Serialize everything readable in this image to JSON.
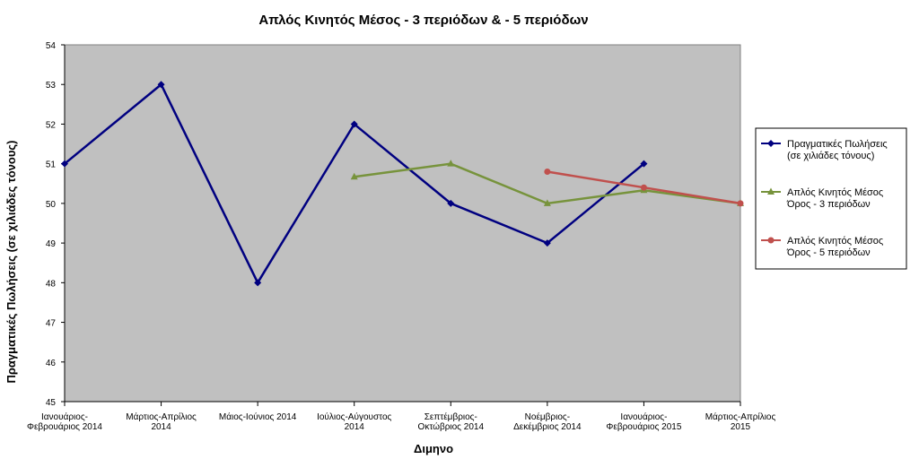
{
  "chart_data": {
    "type": "line",
    "title": "Απλός Κινητός Μέσος - 3 περιόδων & - 5 περιόδων",
    "xlabel": "Διμηνο",
    "ylabel": "Πραγματικές Πωλήσεις (σε χιλιάδες τόνους)",
    "ylim": [
      45,
      54
    ],
    "y_ticks": [
      45,
      46,
      47,
      48,
      49,
      50,
      51,
      52,
      53,
      54
    ],
    "grid": false,
    "legend_position": "right",
    "plot_background": "#c0c0c0",
    "categories": [
      [
        "Ιανουάριος-",
        "Φεβρουάριος 2014"
      ],
      [
        "Μάρτιος-Απρίλιος",
        "2014"
      ],
      [
        "Μάιος-Ιούνιος 2014"
      ],
      [
        "Ιούλιος-Αύγουστος",
        "2014"
      ],
      [
        "Σεπτέμβριος-",
        "Οκτώβριος 2014"
      ],
      [
        "Νοέμβριος-",
        "Δεκέμβριος 2014"
      ],
      [
        "Ιανουάριος-",
        "Φεβρουάριος 2015"
      ],
      [
        "Μάρτιος-Απρίλιος",
        "2015"
      ]
    ],
    "series": [
      {
        "name": [
          "Πραγματικές Πωλήσεις",
          "(σε χιλιάδες τόνους)"
        ],
        "color": "#000080",
        "marker": "diamond",
        "values": [
          51,
          53,
          48,
          52,
          50,
          49,
          51,
          null
        ]
      },
      {
        "name": [
          "Απλός Κινητός Μέσος",
          "Όρος - 3 περιόδων"
        ],
        "color": "#77933c",
        "marker": "triangle",
        "values": [
          null,
          null,
          null,
          50.67,
          51,
          50,
          50.33,
          50
        ]
      },
      {
        "name": [
          "Απλός Κινητός Μέσος",
          "Όρος - 5 περιόδων"
        ],
        "color": "#c0504d",
        "marker": "circle",
        "values": [
          null,
          null,
          null,
          null,
          null,
          50.8,
          50.4,
          50
        ]
      }
    ]
  }
}
